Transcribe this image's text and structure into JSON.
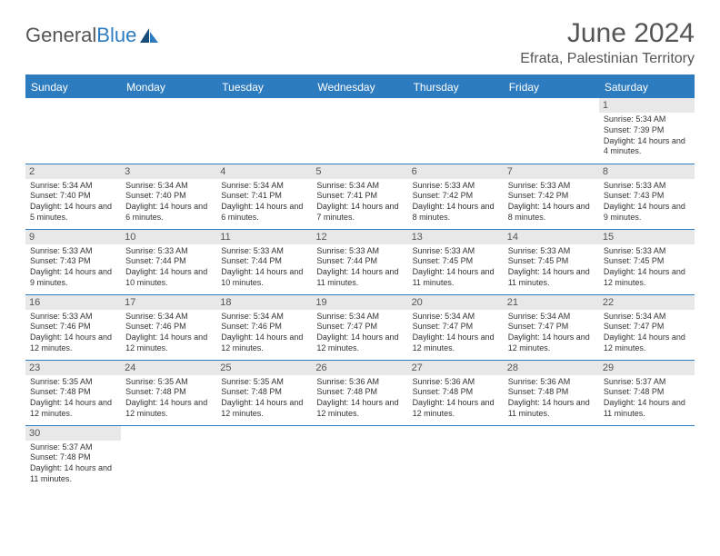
{
  "brand": {
    "name_a": "General",
    "name_b": "Blue"
  },
  "title": "June 2024",
  "subtitle": "Efrata, Palestinian Territory",
  "colors": {
    "header_bg": "#2e7cc0",
    "header_text": "#ffffff",
    "daynum_bg": "#e8e8e8",
    "text": "#333333",
    "title_text": "#555555"
  },
  "day_headers": [
    "Sunday",
    "Monday",
    "Tuesday",
    "Wednesday",
    "Thursday",
    "Friday",
    "Saturday"
  ],
  "weeks": [
    [
      null,
      null,
      null,
      null,
      null,
      null,
      {
        "n": "1",
        "sr": "5:34 AM",
        "ss": "7:39 PM",
        "dl": "14 hours and 4 minutes."
      }
    ],
    [
      {
        "n": "2",
        "sr": "5:34 AM",
        "ss": "7:40 PM",
        "dl": "14 hours and 5 minutes."
      },
      {
        "n": "3",
        "sr": "5:34 AM",
        "ss": "7:40 PM",
        "dl": "14 hours and 6 minutes."
      },
      {
        "n": "4",
        "sr": "5:34 AM",
        "ss": "7:41 PM",
        "dl": "14 hours and 6 minutes."
      },
      {
        "n": "5",
        "sr": "5:34 AM",
        "ss": "7:41 PM",
        "dl": "14 hours and 7 minutes."
      },
      {
        "n": "6",
        "sr": "5:33 AM",
        "ss": "7:42 PM",
        "dl": "14 hours and 8 minutes."
      },
      {
        "n": "7",
        "sr": "5:33 AM",
        "ss": "7:42 PM",
        "dl": "14 hours and 8 minutes."
      },
      {
        "n": "8",
        "sr": "5:33 AM",
        "ss": "7:43 PM",
        "dl": "14 hours and 9 minutes."
      }
    ],
    [
      {
        "n": "9",
        "sr": "5:33 AM",
        "ss": "7:43 PM",
        "dl": "14 hours and 9 minutes."
      },
      {
        "n": "10",
        "sr": "5:33 AM",
        "ss": "7:44 PM",
        "dl": "14 hours and 10 minutes."
      },
      {
        "n": "11",
        "sr": "5:33 AM",
        "ss": "7:44 PM",
        "dl": "14 hours and 10 minutes."
      },
      {
        "n": "12",
        "sr": "5:33 AM",
        "ss": "7:44 PM",
        "dl": "14 hours and 11 minutes."
      },
      {
        "n": "13",
        "sr": "5:33 AM",
        "ss": "7:45 PM",
        "dl": "14 hours and 11 minutes."
      },
      {
        "n": "14",
        "sr": "5:33 AM",
        "ss": "7:45 PM",
        "dl": "14 hours and 11 minutes."
      },
      {
        "n": "15",
        "sr": "5:33 AM",
        "ss": "7:45 PM",
        "dl": "14 hours and 12 minutes."
      }
    ],
    [
      {
        "n": "16",
        "sr": "5:33 AM",
        "ss": "7:46 PM",
        "dl": "14 hours and 12 minutes."
      },
      {
        "n": "17",
        "sr": "5:34 AM",
        "ss": "7:46 PM",
        "dl": "14 hours and 12 minutes."
      },
      {
        "n": "18",
        "sr": "5:34 AM",
        "ss": "7:46 PM",
        "dl": "14 hours and 12 minutes."
      },
      {
        "n": "19",
        "sr": "5:34 AM",
        "ss": "7:47 PM",
        "dl": "14 hours and 12 minutes."
      },
      {
        "n": "20",
        "sr": "5:34 AM",
        "ss": "7:47 PM",
        "dl": "14 hours and 12 minutes."
      },
      {
        "n": "21",
        "sr": "5:34 AM",
        "ss": "7:47 PM",
        "dl": "14 hours and 12 minutes."
      },
      {
        "n": "22",
        "sr": "5:34 AM",
        "ss": "7:47 PM",
        "dl": "14 hours and 12 minutes."
      }
    ],
    [
      {
        "n": "23",
        "sr": "5:35 AM",
        "ss": "7:48 PM",
        "dl": "14 hours and 12 minutes."
      },
      {
        "n": "24",
        "sr": "5:35 AM",
        "ss": "7:48 PM",
        "dl": "14 hours and 12 minutes."
      },
      {
        "n": "25",
        "sr": "5:35 AM",
        "ss": "7:48 PM",
        "dl": "14 hours and 12 minutes."
      },
      {
        "n": "26",
        "sr": "5:36 AM",
        "ss": "7:48 PM",
        "dl": "14 hours and 12 minutes."
      },
      {
        "n": "27",
        "sr": "5:36 AM",
        "ss": "7:48 PM",
        "dl": "14 hours and 12 minutes."
      },
      {
        "n": "28",
        "sr": "5:36 AM",
        "ss": "7:48 PM",
        "dl": "14 hours and 11 minutes."
      },
      {
        "n": "29",
        "sr": "5:37 AM",
        "ss": "7:48 PM",
        "dl": "14 hours and 11 minutes."
      }
    ],
    [
      {
        "n": "30",
        "sr": "5:37 AM",
        "ss": "7:48 PM",
        "dl": "14 hours and 11 minutes."
      },
      null,
      null,
      null,
      null,
      null,
      null
    ]
  ],
  "labels": {
    "sunrise": "Sunrise:",
    "sunset": "Sunset:",
    "daylight": "Daylight:"
  }
}
